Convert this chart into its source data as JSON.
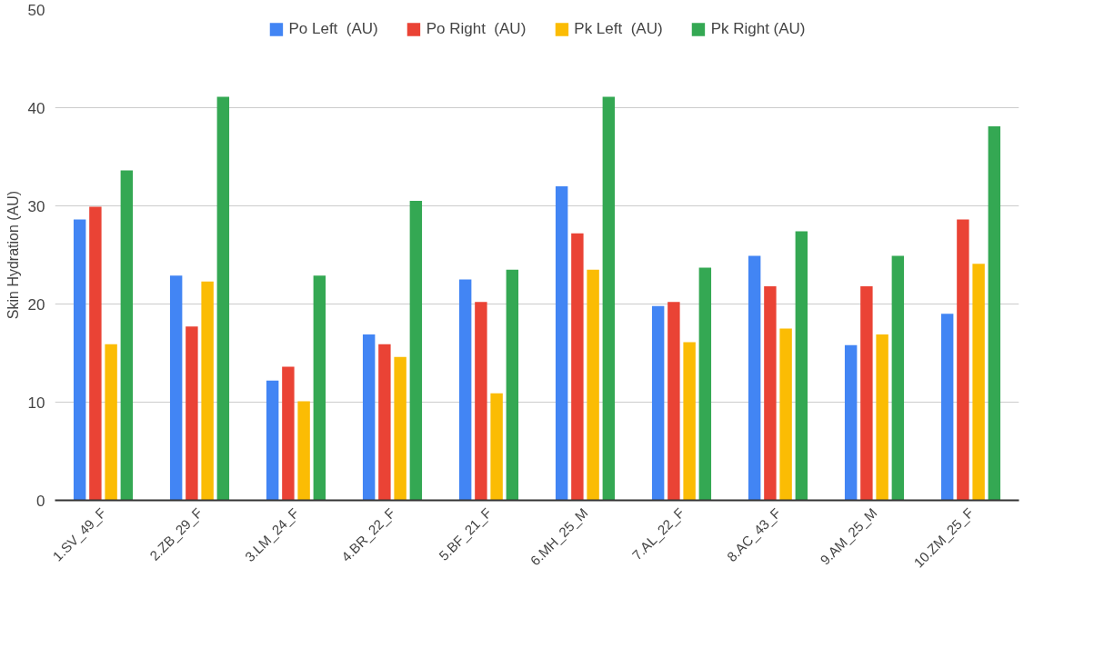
{
  "chart_data": {
    "type": "bar",
    "ylabel": "Skin Hydration (AU)",
    "categories": [
      "1.SV_49_F",
      "2.ZB_29_F",
      "3.LM_24_F",
      "4.BR_22_F",
      "5.BF_21_F",
      "6.MH_25_M",
      "7.AL_22_F",
      "8.AC_43_F",
      "9.AM_25_M",
      "10.ZM_25_F"
    ],
    "series": [
      {
        "name": "Po Left  (AU)",
        "color": "#4285f4",
        "values": [
          28.6,
          22.9,
          12.2,
          16.9,
          22.5,
          32.0,
          19.8,
          24.9,
          15.8,
          19.0
        ]
      },
      {
        "name": "Po Right  (AU)",
        "color": "#ea4335",
        "values": [
          29.9,
          17.7,
          13.6,
          15.9,
          20.2,
          27.2,
          20.2,
          21.8,
          21.8,
          28.6
        ]
      },
      {
        "name": "Pk Left  (AU)",
        "color": "#fbbc04",
        "values": [
          15.9,
          22.3,
          10.1,
          14.6,
          10.9,
          23.5,
          16.1,
          17.5,
          16.9,
          24.1
        ]
      },
      {
        "name": "Pk Right (AU)",
        "color": "#34a853",
        "values": [
          33.6,
          41.1,
          22.9,
          30.5,
          23.5,
          41.1,
          23.7,
          27.4,
          24.9,
          38.1
        ]
      }
    ],
    "ylim": [
      0,
      50
    ],
    "yticks": [
      0,
      10,
      20,
      30,
      40,
      50
    ],
    "grid": "y",
    "legend": "top"
  }
}
